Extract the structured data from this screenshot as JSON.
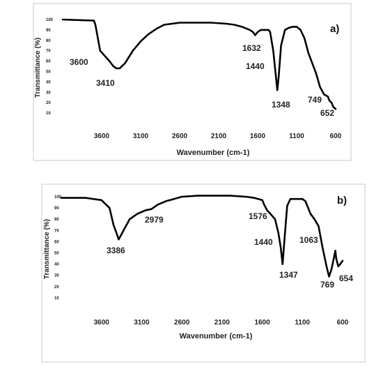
{
  "chart_data": [
    {
      "type": "line",
      "panel_label": "a)",
      "xlabel": "Wavenumber (cm-1)",
      "ylabel": "Transmittance (%)",
      "xlim": [
        4100,
        600
      ],
      "ylim": [
        0,
        100
      ],
      "x_reversed": true,
      "xticks": [
        "3600",
        "3100",
        "2600",
        "2100",
        "1600",
        "1100",
        "600"
      ],
      "yticks": [
        "100",
        "90",
        "80",
        "70",
        "60",
        "50",
        "40",
        "30",
        "20",
        "10"
      ],
      "grid": false,
      "series": [
        {
          "x": [
            4100,
            3700,
            3680,
            3620,
            3560,
            3500,
            3450,
            3410,
            3370,
            3300,
            3200,
            3100,
            3000,
            2900,
            2800,
            2600,
            2400,
            2200,
            2000,
            1900,
            1800,
            1700,
            1660,
            1632,
            1600,
            1560,
            1500,
            1460,
            1440,
            1400,
            1370,
            1348,
            1330,
            1300,
            1250,
            1200,
            1150,
            1100,
            1050,
            1000,
            950,
            900,
            850,
            800,
            749,
            700,
            680,
            652,
            630,
            600
          ],
          "y": [
            100,
            99,
            95,
            70,
            65,
            60,
            55,
            53,
            53,
            58,
            70,
            79,
            86,
            91,
            95,
            97,
            97,
            97,
            96,
            95,
            93,
            90,
            88,
            85,
            88,
            90,
            90,
            90,
            88,
            70,
            48,
            32,
            45,
            75,
            90,
            92,
            93,
            93,
            90,
            82,
            68,
            58,
            48,
            35,
            28,
            26,
            22,
            20,
            16,
            14
          ]
        }
      ],
      "annotations": [
        "3600",
        "3410",
        "1632",
        "1440",
        "1348",
        "749",
        "652"
      ]
    },
    {
      "type": "line",
      "panel_label": "b)",
      "xlabel": "Wavenumber (cm-1)",
      "ylabel": "Transmittance (%)",
      "xlim": [
        4100,
        600
      ],
      "ylim": [
        0,
        100
      ],
      "x_reversed": true,
      "xticks": [
        "3600",
        "3100",
        "2600",
        "2100",
        "1600",
        "1100",
        "600"
      ],
      "yticks": [
        "100",
        "90",
        "80",
        "70",
        "60",
        "50",
        "40",
        "30",
        "20",
        "10"
      ],
      "grid": false,
      "series": [
        {
          "x": [
            4100,
            3800,
            3600,
            3500,
            3450,
            3400,
            3386,
            3340,
            3250,
            3150,
            3050,
            2979,
            2900,
            2800,
            2700,
            2600,
            2400,
            2200,
            2000,
            1800,
            1700,
            1600,
            1576,
            1540,
            1500,
            1440,
            1400,
            1370,
            1347,
            1320,
            1290,
            1250,
            1200,
            1100,
            1063,
            1000,
            950,
            900,
            850,
            800,
            769,
            740,
            710,
            690,
            680,
            654,
            630,
            600
          ],
          "y": [
            99,
            99,
            97,
            90,
            75,
            65,
            62,
            68,
            80,
            85,
            88,
            89,
            93,
            96,
            98,
            100,
            101,
            101,
            101,
            100,
            99,
            97,
            93,
            88,
            85,
            80,
            68,
            55,
            40,
            65,
            92,
            98,
            98,
            98,
            96,
            85,
            80,
            74,
            55,
            38,
            29,
            35,
            45,
            52,
            45,
            38,
            40,
            43
          ]
        }
      ],
      "annotations": [
        "3386",
        "2979",
        "1576",
        "1440",
        "1063",
        "1347",
        "769",
        "654"
      ]
    }
  ]
}
